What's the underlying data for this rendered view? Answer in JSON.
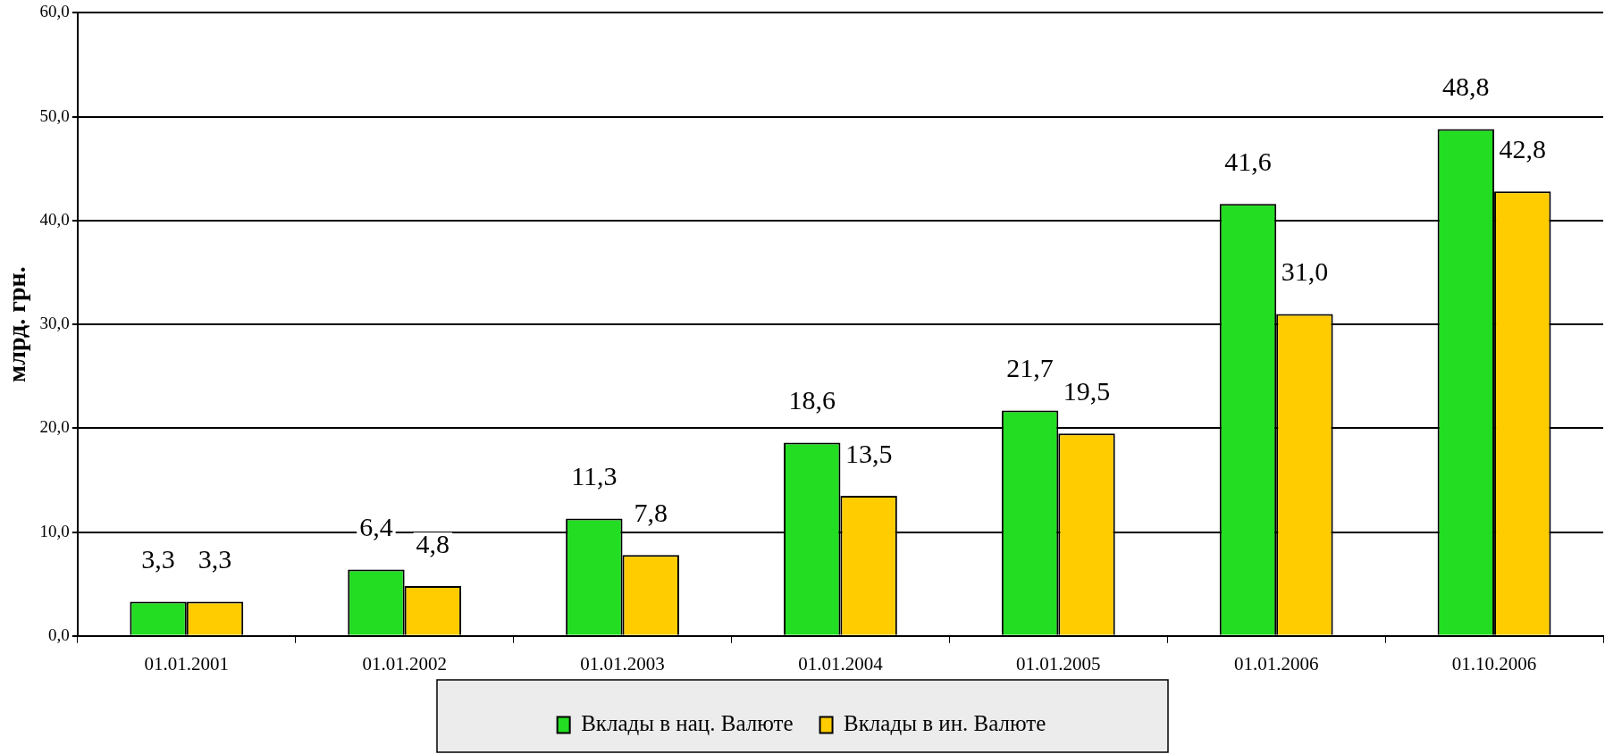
{
  "chart_data": {
    "type": "bar",
    "ylabel": "млрд. грн.",
    "categories": [
      "01.01.2001",
      "01.01.2002",
      "01.01.2003",
      "01.01.2004",
      "01.01.2005",
      "01.01.2006",
      "01.10.2006"
    ],
    "series": [
      {
        "name": "Вклады в нац. Валюте",
        "color": "#22dd22",
        "values": [
          3.3,
          6.4,
          11.3,
          18.6,
          21.7,
          41.6,
          48.8
        ],
        "value_labels": [
          "3,3",
          "6,4",
          "11,3",
          "18,6",
          "21,7",
          "41,6",
          "48,8"
        ]
      },
      {
        "name": "Вклады в ин. Валюте",
        "color": "#ffcc00",
        "values": [
          3.3,
          4.8,
          7.8,
          13.5,
          19.5,
          31.0,
          42.8
        ],
        "value_labels": [
          "3,3",
          "4,8",
          "7,8",
          "13,5",
          "19,5",
          "31,0",
          "42,8"
        ]
      }
    ],
    "ylim": [
      0,
      60
    ],
    "yticks": [
      {
        "value": 0,
        "label": "0,0"
      },
      {
        "value": 10,
        "label": "10,0"
      },
      {
        "value": 20,
        "label": "20,0"
      },
      {
        "value": 30,
        "label": "30,0"
      },
      {
        "value": 40,
        "label": "40,0"
      },
      {
        "value": 50,
        "label": "50,0"
      },
      {
        "value": 60,
        "label": "60,0"
      }
    ],
    "grid": "y",
    "legend": "bottom"
  }
}
